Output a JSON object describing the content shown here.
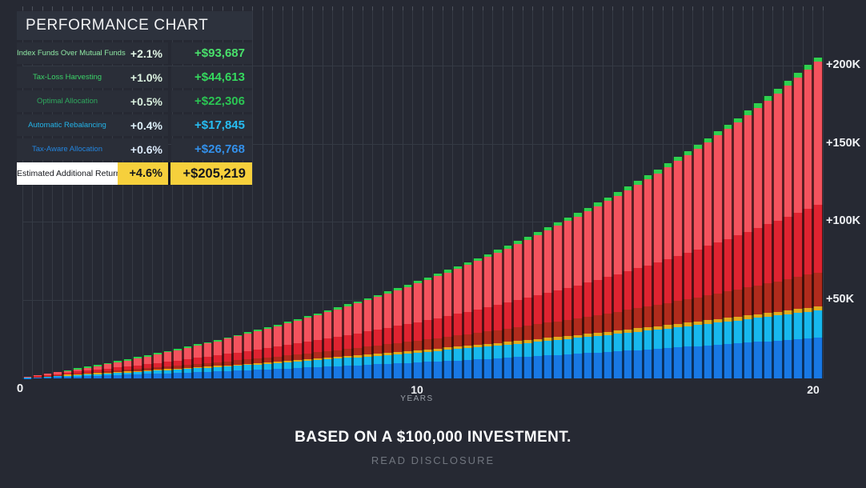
{
  "page": {
    "background": "#262933",
    "footer_title": "BASED ON A $100,000 INVESTMENT.",
    "footer_link": "READ DISCLOSURE"
  },
  "legend": {
    "title": "PERFORMANCE CHART",
    "rows": [
      {
        "label": "Index Funds Over Mutual Funds",
        "pct": "+2.1%",
        "value": "+$93,687",
        "label_color": "#8ee6a3",
        "pct_color": "#e2f6e6",
        "value_color": "#49e06b"
      },
      {
        "label": "Tax-Loss Harvesting",
        "pct": "+1.0%",
        "value": "+$44,613",
        "label_color": "#3bd468",
        "pct_color": "#ddf3e1",
        "value_color": "#35d95e"
      },
      {
        "label": "Optimal Allocation",
        "pct": "+0.5%",
        "value": "+$22,306",
        "label_color": "#2fa95e",
        "pct_color": "#d8eedd",
        "value_color": "#2bc553"
      },
      {
        "label": "Automatic Rebalancing",
        "pct": "+0.4%",
        "value": "+$17,845",
        "label_color": "#23b3e8",
        "pct_color": "#dff2fb",
        "value_color": "#27bdf2"
      },
      {
        "label": "Tax-Aware Allocation",
        "pct": "+0.6%",
        "value": "+$26,768",
        "label_color": "#2386e0",
        "pct_color": "#dceafa",
        "value_color": "#3390ea"
      }
    ],
    "total_row": {
      "label": "Estimated Additional Return",
      "pct": "+4.6%",
      "value": "+$205,219",
      "label_bg": "#ffffff",
      "value_bg": "#f6d03c",
      "text_color": "#15171c"
    }
  },
  "chart_data": {
    "type": "bar",
    "subtype": "stacked-bar-quarterly",
    "title": "Performance Chart — estimated additional return on a $100,000 investment over 20 years",
    "x_axis": {
      "min": 0,
      "max": 20,
      "labels": [
        "0",
        "10",
        "20"
      ],
      "unit": "YEARS"
    },
    "y_axis": {
      "ticks": [
        {
          "label": "+50K",
          "value": 50000
        },
        {
          "label": "+100K",
          "value": 100000
        },
        {
          "label": "+150K",
          "value": 150000
        },
        {
          "label": "+200K",
          "value": 200000
        }
      ]
    },
    "investment": 100000,
    "total_additional_return_pct": "+4.6%",
    "total_additional_return_value": 205219,
    "totals_by_year": [
      0,
      4149,
      8661,
      13564,
      18898,
      24690,
      30988,
      37831,
      45272,
      53359,
      62147,
      71703,
      82090,
      93382,
      105652,
      118993,
      133495,
      149257,
      166392,
      185017,
      205219
    ],
    "bars": {
      "count": 80,
      "per_year": 4
    },
    "series": [
      {
        "name": "Tax-Aware Allocation",
        "color": "#1878e4",
        "dark": "#0a3260",
        "share_start": 0.2,
        "share_end": 0.127,
        "value_year20": 26768
      },
      {
        "name": "Automatic Rebalancing",
        "color": "#17b8ee",
        "dark": "#084a61",
        "share_start": 0.12,
        "share_end": 0.0847,
        "value_year20": 17845
      },
      {
        "name": "highlight-yellow",
        "color": "#e2ab1e",
        "dark": "#5c450e",
        "share_start": 0.035,
        "share_end": 0.012
      },
      {
        "name": "Optimal Allocation",
        "color": "#b02b1c",
        "dark": "#42100a",
        "share_start": 0.09,
        "share_end": 0.1059,
        "value_year20": 22306
      },
      {
        "name": "Tax-Loss Harvesting",
        "color": "#df2330",
        "dark": "#521014",
        "share_start": 0.17,
        "share_end": 0.2117,
        "value_year20": 44613
      },
      {
        "name": "Index Funds Over Mutual Funds",
        "color": "#f4535e",
        "dark": "#5a1f23",
        "share_start": 0.35,
        "share_end": 0.4447,
        "value_year20": 93687
      },
      {
        "name": "highlight-green",
        "color": "#2fd04f",
        "dark": "#114d1e",
        "share_start": 0.035,
        "share_end": 0.014
      }
    ]
  }
}
